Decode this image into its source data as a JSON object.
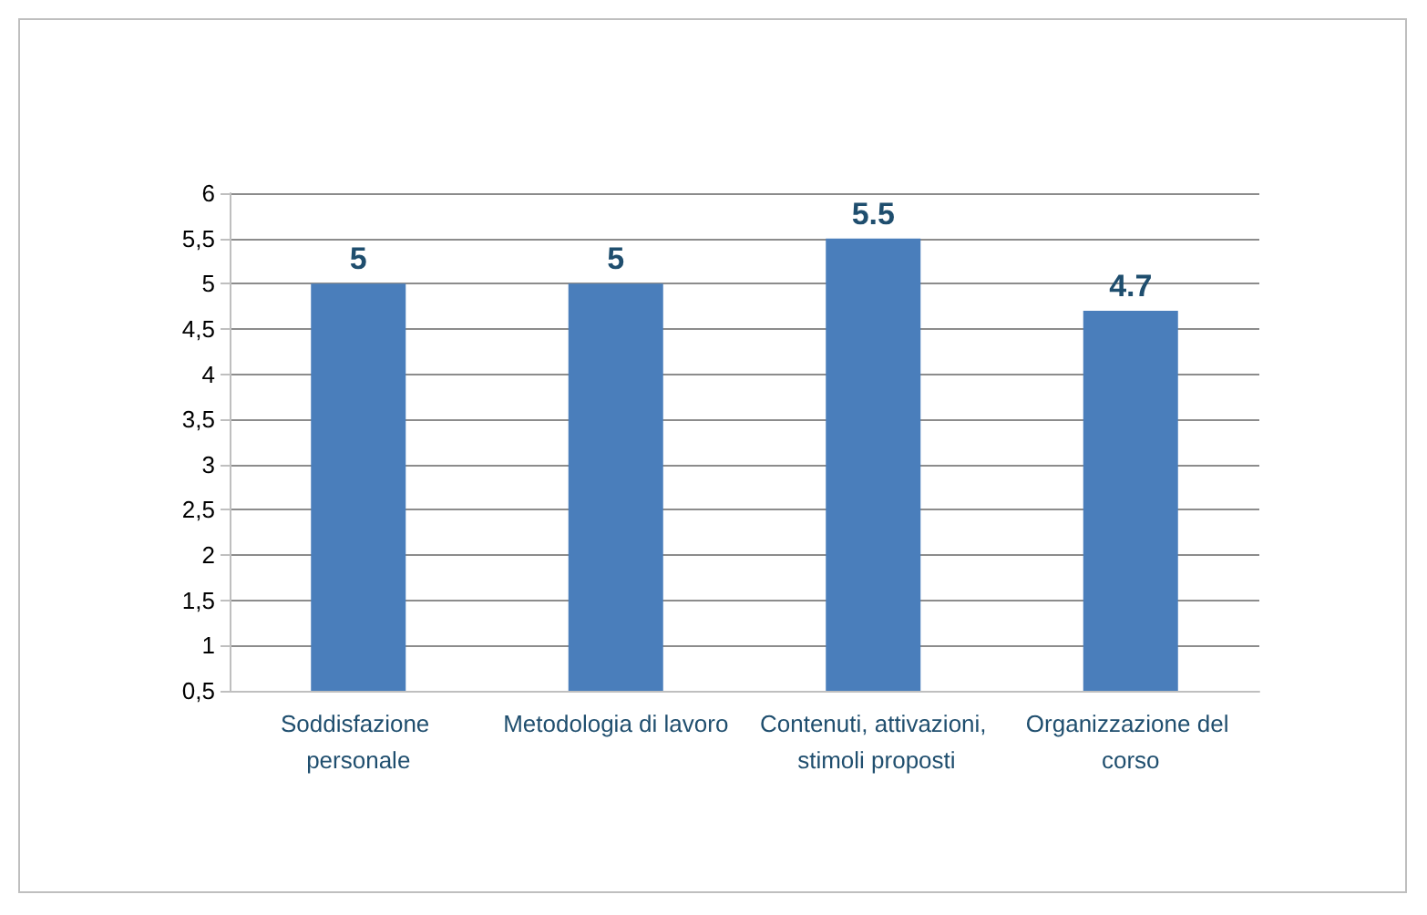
{
  "chart_data": {
    "type": "bar",
    "categories": [
      "Soddisfazione personale",
      "Metodologia di lavoro",
      "Contenuti, attivazioni, stimoli proposti",
      "Organizzazione del corso"
    ],
    "values": [
      5,
      5,
      5.5,
      4.7
    ],
    "color": "#4a7ebb",
    "ylim": [
      0.5,
      6
    ],
    "yticks": [
      {
        "value": 0.5,
        "label": "0,5"
      },
      1,
      {
        "value": 1.5,
        "label": "1,5"
      },
      2,
      {
        "value": 2.5,
        "label": "2,5"
      },
      3,
      {
        "value": 3.5,
        "label": "3,5"
      },
      4,
      {
        "value": 4.5,
        "label": "4,5"
      },
      5,
      {
        "value": 5.5,
        "label": "5,5"
      },
      6
    ],
    "grid": true,
    "data_labels": true
  }
}
